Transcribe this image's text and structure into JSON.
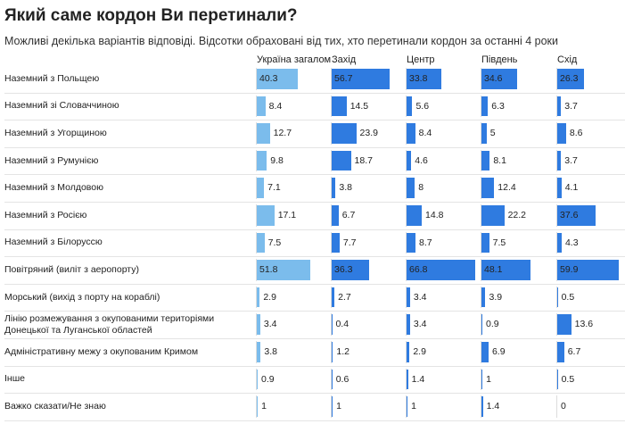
{
  "chart_data": {
    "type": "bar",
    "title": "Який саме кордон Ви перетинали?",
    "subtitle": "Можливі декілька варіантів відповіді. Відсотки обраховані від тих, хто перетинали кордон за останні 4 роки",
    "categories": [
      "Наземний з Польщею",
      "Наземний зі Словаччиною",
      "Наземний з Угорщиною",
      "Наземний з Румунією",
      "Наземний з Молдовою",
      "Наземний з Росією",
      "Наземний з Білоруссю",
      "Повітряний (виліт з аеропорту)",
      "Морський (вихід з порту на кораблі)",
      "Лінію розмежування з окупованими територіями Донецької та Луганської областей",
      "Адміністративну межу з окупованим Кримом",
      "Інше",
      "Важко сказати/Не знаю"
    ],
    "series": [
      {
        "name": "Україна загалом",
        "color": "#7bbcec",
        "values": [
          40.3,
          8.4,
          12.7,
          9.8,
          7.1,
          17.1,
          7.5,
          51.8,
          2.9,
          3.4,
          3.8,
          0.9,
          1
        ]
      },
      {
        "name": "Захід",
        "color": "#2f7be0",
        "values": [
          56.7,
          14.5,
          23.9,
          18.7,
          3.8,
          6.7,
          7.7,
          36.3,
          2.7,
          0.4,
          1.2,
          0.6,
          1
        ]
      },
      {
        "name": "Центр",
        "color": "#2f7be0",
        "values": [
          33.8,
          5.6,
          8.4,
          4.6,
          8,
          14.8,
          8.7,
          66.8,
          3.4,
          3.4,
          2.9,
          1.4,
          1
        ]
      },
      {
        "name": "Південь",
        "color": "#2f7be0",
        "values": [
          34.6,
          6.3,
          5,
          8.1,
          12.4,
          22.2,
          7.5,
          48.1,
          3.9,
          0.9,
          6.9,
          1,
          1.4
        ]
      },
      {
        "name": "Схід",
        "color": "#2f7be0",
        "values": [
          26.3,
          3.7,
          8.6,
          3.7,
          4.1,
          37.6,
          4.3,
          59.9,
          0.5,
          13.6,
          6.7,
          0.5,
          0
        ]
      }
    ]
  }
}
